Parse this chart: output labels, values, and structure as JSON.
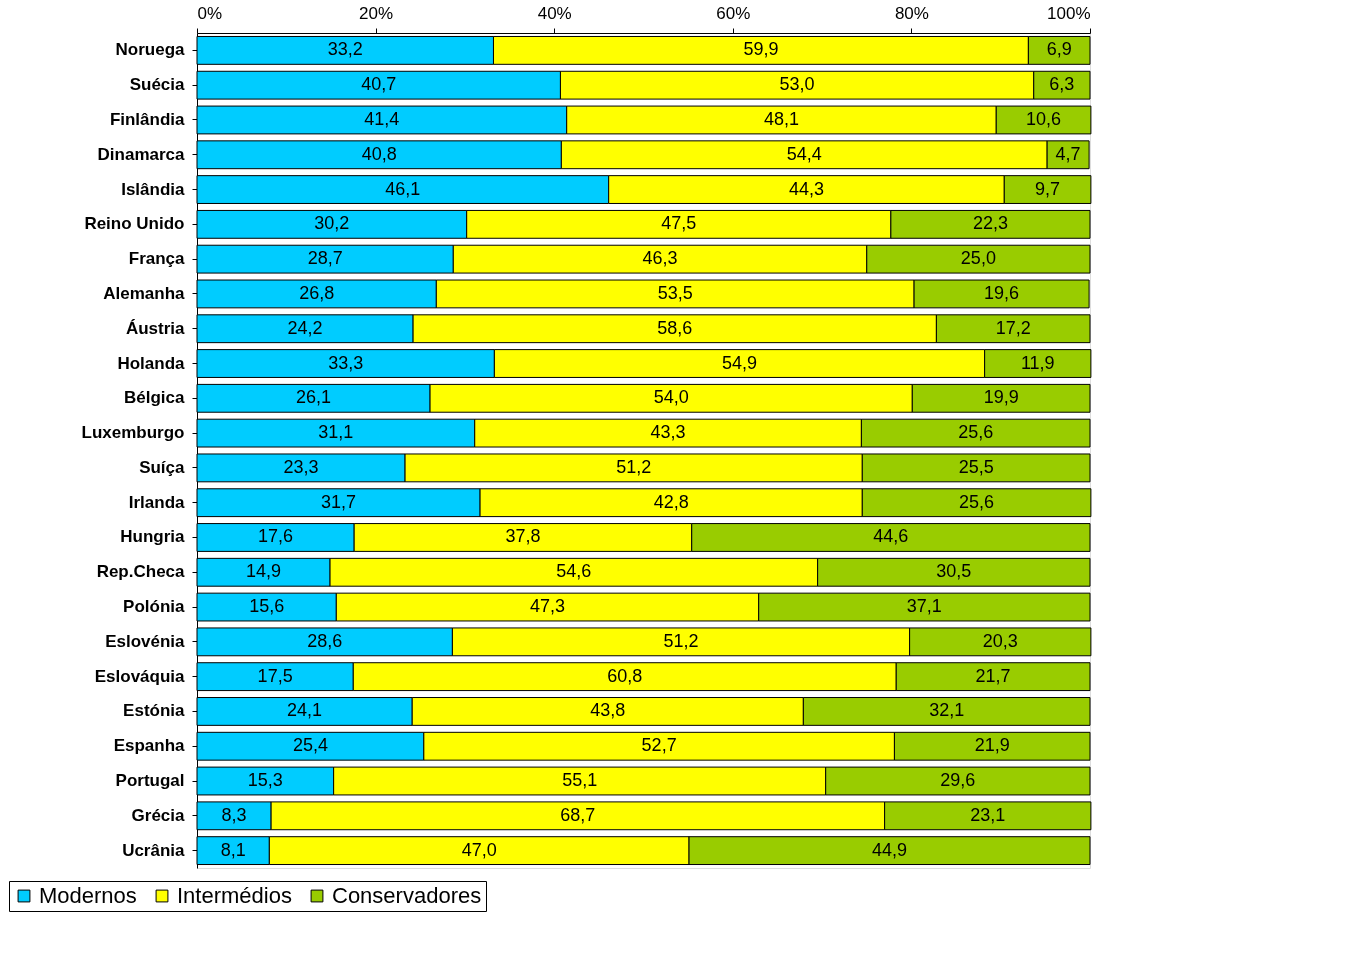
{
  "chart_data": {
    "type": "bar",
    "orientation": "horizontal",
    "stacked": true,
    "categories": [
      "Noruega",
      "Suécia",
      "Finlândia",
      "Dinamarca",
      "Islândia",
      "Reino Unido",
      "França",
      "Alemanha",
      "Áustria",
      "Holanda",
      "Bélgica",
      "Luxemburgo",
      "Suíça",
      "Irlanda",
      "Hungria",
      "Rep.Checa",
      "Polónia",
      "Eslovénia",
      "Eslováquia",
      "Estónia",
      "Espanha",
      "Portugal",
      "Grécia",
      "Ucrânia"
    ],
    "series": [
      {
        "name": "Modernos",
        "color": "#00ccff",
        "values": [
          33.2,
          40.7,
          41.4,
          40.8,
          46.1,
          30.2,
          28.7,
          26.8,
          24.2,
          33.3,
          26.1,
          31.1,
          23.3,
          31.7,
          17.6,
          14.9,
          15.6,
          28.6,
          17.5,
          24.1,
          25.4,
          15.3,
          8.3,
          8.1
        ],
        "value_labels": [
          "33,2",
          "40,7",
          "41,4",
          "40,8",
          "46,1",
          "30,2",
          "28,7",
          "26,8",
          "24,2",
          "33,3",
          "26,1",
          "31,1",
          "23,3",
          "31,7",
          "17,6",
          "14,9",
          "15,6",
          "28,6",
          "17,5",
          "24,1",
          "25,4",
          "15,3",
          "8,3",
          "8,1"
        ]
      },
      {
        "name": "Intermédios",
        "color": "#ffff00",
        "values": [
          59.9,
          53.0,
          48.1,
          54.4,
          44.3,
          47.5,
          46.3,
          53.5,
          58.6,
          54.9,
          54.0,
          43.3,
          51.2,
          42.8,
          37.8,
          54.6,
          47.3,
          51.2,
          60.8,
          43.8,
          52.7,
          55.1,
          68.7,
          47.0
        ],
        "value_labels": [
          "59,9",
          "53,0",
          "48,1",
          "54,4",
          "44,3",
          "47,5",
          "46,3",
          "53,5",
          "58,6",
          "54,9",
          "54,0",
          "43,3",
          "51,2",
          "42,8",
          "37,8",
          "54,6",
          "47,3",
          "51,2",
          "60,8",
          "43,8",
          "52,7",
          "55,1",
          "68,7",
          "47,0"
        ]
      },
      {
        "name": "Conservadores",
        "color": "#99cc00",
        "values": [
          6.9,
          6.3,
          10.6,
          4.7,
          9.7,
          22.3,
          25.0,
          19.6,
          17.2,
          11.9,
          19.9,
          25.6,
          25.5,
          25.6,
          44.6,
          30.5,
          37.1,
          20.3,
          21.7,
          32.1,
          21.9,
          29.6,
          23.1,
          44.9
        ],
        "value_labels": [
          "6,9",
          "6,3",
          "10,6",
          "4,7",
          "9,7",
          "22,3",
          "25,0",
          "19,6",
          "17,2",
          "11,9",
          "19,9",
          "25,6",
          "25,5",
          "25,6",
          "44,6",
          "30,5",
          "37,1",
          "20,3",
          "21,7",
          "32,1",
          "21,9",
          "29,6",
          "23,1",
          "44,9"
        ]
      }
    ],
    "xlim": [
      0,
      100
    ],
    "xticks": [
      {
        "value": 0,
        "label": "0%"
      },
      {
        "value": 20,
        "label": "20%"
      },
      {
        "value": 40,
        "label": "40%"
      },
      {
        "value": 60,
        "label": "60%"
      },
      {
        "value": 80,
        "label": "80%"
      },
      {
        "value": 100,
        "label": "100%"
      }
    ],
    "grid": false,
    "legend": "bottom left"
  }
}
